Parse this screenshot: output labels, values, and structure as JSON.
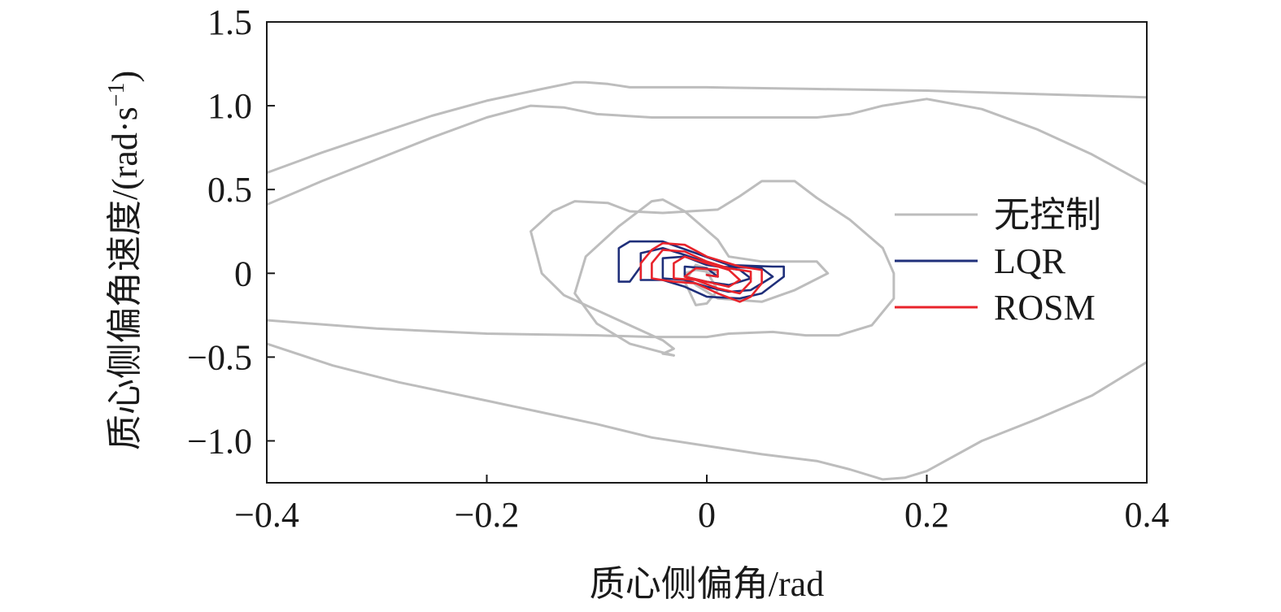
{
  "chart_data": {
    "type": "line",
    "xlabel": "质心侧偏角/rad",
    "ylabel": "质心侧偏角速度/(rad·s",
    "ylabel_sup": "−1",
    "ylabel_close": ")",
    "xlim": [
      -0.4,
      0.4
    ],
    "ylim": [
      -1.25,
      1.5
    ],
    "xticks": [
      {
        "v": -0.4,
        "label": "−0.4"
      },
      {
        "v": -0.2,
        "label": "−0.2"
      },
      {
        "v": 0,
        "label": "0"
      },
      {
        "v": 0.2,
        "label": "0.2"
      },
      {
        "v": 0.4,
        "label": "0.4"
      }
    ],
    "yticks": [
      {
        "v": 1.5,
        "label": "1.5"
      },
      {
        "v": 1.0,
        "label": "1.0"
      },
      {
        "v": 0.5,
        "label": "0.5"
      },
      {
        "v": 0,
        "label": "0"
      },
      {
        "v": -0.5,
        "label": "−0.5"
      },
      {
        "v": -1.0,
        "label": "−1.0"
      }
    ],
    "grid": false,
    "legend_position": "right",
    "series": [
      {
        "name": "无控制",
        "color": "#bdbdbd",
        "segments": [
          [
            [
              -0.4,
              0.6
            ],
            [
              -0.35,
              0.72
            ],
            [
              -0.3,
              0.83
            ],
            [
              -0.25,
              0.94
            ],
            [
              -0.2,
              1.03
            ],
            [
              -0.15,
              1.1
            ],
            [
              -0.12,
              1.14
            ],
            [
              -0.11,
              1.14
            ],
            [
              -0.09,
              1.13
            ],
            [
              -0.08,
              1.12
            ],
            [
              -0.07,
              1.11
            ],
            [
              0.0,
              1.11
            ],
            [
              0.1,
              1.1
            ],
            [
              0.2,
              1.09
            ],
            [
              0.3,
              1.07
            ],
            [
              0.4,
              1.05
            ]
          ],
          [
            [
              -0.4,
              0.41
            ],
            [
              -0.35,
              0.55
            ],
            [
              -0.3,
              0.68
            ],
            [
              -0.25,
              0.81
            ],
            [
              -0.2,
              0.93
            ],
            [
              -0.16,
              1.0
            ],
            [
              -0.13,
              0.99
            ],
            [
              -0.1,
              0.95
            ],
            [
              -0.05,
              0.93
            ],
            [
              0.0,
              0.93
            ],
            [
              0.05,
              0.93
            ],
            [
              0.1,
              0.93
            ],
            [
              0.13,
              0.95
            ],
            [
              0.16,
              1.0
            ],
            [
              0.2,
              1.04
            ],
            [
              0.25,
              0.98
            ],
            [
              0.3,
              0.86
            ],
            [
              0.35,
              0.71
            ],
            [
              0.4,
              0.53
            ]
          ],
          [
            [
              -0.4,
              -0.42
            ],
            [
              -0.34,
              -0.55
            ],
            [
              -0.28,
              -0.65
            ],
            [
              -0.2,
              -0.76
            ],
            [
              -0.15,
              -0.83
            ],
            [
              -0.1,
              -0.9
            ],
            [
              -0.05,
              -0.98
            ],
            [
              0.0,
              -1.03
            ],
            [
              0.05,
              -1.08
            ],
            [
              0.1,
              -1.12
            ],
            [
              0.13,
              -1.17
            ],
            [
              0.16,
              -1.23
            ],
            [
              0.18,
              -1.22
            ],
            [
              0.2,
              -1.18
            ],
            [
              0.25,
              -1.0
            ],
            [
              0.3,
              -0.87
            ],
            [
              0.35,
              -0.73
            ],
            [
              0.4,
              -0.53
            ]
          ],
          [
            [
              -0.4,
              -0.28
            ],
            [
              -0.3,
              -0.33
            ],
            [
              -0.2,
              -0.36
            ],
            [
              -0.1,
              -0.37
            ],
            [
              -0.05,
              -0.38
            ],
            [
              0.0,
              -0.38
            ],
            [
              0.02,
              -0.36
            ],
            [
              0.06,
              -0.35
            ],
            [
              0.09,
              -0.37
            ],
            [
              0.12,
              -0.37
            ],
            [
              0.15,
              -0.31
            ],
            [
              0.17,
              -0.15
            ],
            [
              0.17,
              0.0
            ],
            [
              0.16,
              0.15
            ],
            [
              0.13,
              0.32
            ],
            [
              0.1,
              0.45
            ],
            [
              0.08,
              0.55
            ],
            [
              0.05,
              0.55
            ],
            [
              0.03,
              0.46
            ],
            [
              0.01,
              0.38
            ],
            [
              -0.04,
              0.36
            ],
            [
              -0.07,
              0.37
            ],
            [
              -0.09,
              0.42
            ],
            [
              -0.12,
              0.43
            ],
            [
              -0.14,
              0.37
            ],
            [
              -0.16,
              0.25
            ],
            [
              -0.15,
              0.0
            ],
            [
              -0.13,
              -0.13
            ],
            [
              -0.08,
              -0.28
            ],
            [
              -0.04,
              -0.4
            ],
            [
              -0.03,
              -0.45
            ],
            [
              -0.04,
              -0.48
            ],
            [
              -0.03,
              -0.49
            ]
          ],
          [
            [
              -0.03,
              -0.49
            ],
            [
              -0.07,
              -0.42
            ],
            [
              -0.1,
              -0.3
            ],
            [
              -0.12,
              -0.12
            ],
            [
              -0.11,
              0.1
            ],
            [
              -0.08,
              0.28
            ],
            [
              -0.05,
              0.43
            ],
            [
              -0.04,
              0.44
            ],
            [
              -0.02,
              0.37
            ],
            [
              0.01,
              0.2
            ],
            [
              0.02,
              0.1
            ],
            [
              0.05,
              0.07
            ],
            [
              0.1,
              0.07
            ],
            [
              0.11,
              0.0
            ],
            [
              0.08,
              -0.1
            ],
            [
              0.05,
              -0.17
            ],
            [
              0.01,
              -0.15
            ],
            [
              -0.01,
              -0.07
            ],
            [
              -0.02,
              0.0
            ],
            [
              -0.01,
              0.02
            ],
            [
              0.0,
              0.01
            ]
          ],
          [
            [
              0.0,
              0.01
            ],
            [
              0.01,
              -0.1
            ],
            [
              0.0,
              -0.18
            ],
            [
              -0.01,
              -0.19
            ],
            [
              -0.02,
              -0.05
            ],
            [
              -0.01,
              0.05
            ],
            [
              0.01,
              0.01
            ],
            [
              0.0,
              0.0
            ]
          ]
        ]
      },
      {
        "name": "LQR",
        "color": "#1f2f7a",
        "segments": [
          [
            [
              -0.06,
              0.04
            ],
            [
              -0.07,
              -0.05
            ],
            [
              -0.08,
              -0.05
            ],
            [
              -0.08,
              0.15
            ],
            [
              -0.07,
              0.19
            ],
            [
              -0.04,
              0.19
            ],
            [
              -0.01,
              0.12
            ],
            [
              0.02,
              0.05
            ],
            [
              0.06,
              0.04
            ],
            [
              0.07,
              0.04
            ],
            [
              0.07,
              -0.02
            ],
            [
              0.05,
              -0.12
            ],
            [
              0.03,
              -0.15
            ],
            [
              0.0,
              -0.14
            ],
            [
              -0.02,
              -0.08
            ],
            [
              -0.04,
              -0.04
            ],
            [
              -0.06,
              -0.04
            ],
            [
              -0.06,
              0.12
            ],
            [
              -0.04,
              0.15
            ],
            [
              -0.02,
              0.11
            ],
            [
              0.01,
              0.04
            ],
            [
              0.05,
              0.03
            ],
            [
              0.06,
              -0.02
            ],
            [
              0.04,
              -0.1
            ],
            [
              0.02,
              -0.11
            ],
            [
              0.0,
              -0.08
            ],
            [
              -0.02,
              -0.04
            ],
            [
              -0.04,
              -0.03
            ],
            [
              -0.04,
              0.09
            ],
            [
              -0.02,
              0.1
            ],
            [
              0.0,
              0.05
            ],
            [
              0.03,
              0.02
            ],
            [
              0.04,
              -0.03
            ],
            [
              0.02,
              -0.07
            ],
            [
              0.0,
              -0.05
            ],
            [
              -0.02,
              -0.02
            ],
            [
              -0.02,
              0.04
            ],
            [
              0.0,
              0.03
            ],
            [
              0.01,
              -0.02
            ],
            [
              0.0,
              -0.01
            ]
          ]
        ]
      },
      {
        "name": "ROSM",
        "color": "#e8232b",
        "segments": [
          [
            [
              -0.06,
              -0.03
            ],
            [
              -0.06,
              0.06
            ],
            [
              -0.05,
              0.14
            ],
            [
              -0.04,
              0.18
            ],
            [
              -0.02,
              0.17
            ],
            [
              0.0,
              0.1
            ],
            [
              0.03,
              0.04
            ],
            [
              0.05,
              0.02
            ],
            [
              0.05,
              -0.06
            ],
            [
              0.04,
              -0.14
            ],
            [
              0.03,
              -0.17
            ],
            [
              0.01,
              -0.12
            ],
            [
              -0.01,
              -0.06
            ],
            [
              -0.03,
              -0.05
            ],
            [
              -0.05,
              -0.03
            ],
            [
              -0.05,
              0.06
            ],
            [
              -0.04,
              0.14
            ],
            [
              -0.02,
              0.13
            ],
            [
              0.0,
              0.07
            ],
            [
              0.02,
              0.03
            ],
            [
              0.04,
              0.01
            ],
            [
              0.04,
              -0.05
            ],
            [
              0.03,
              -0.12
            ],
            [
              0.01,
              -0.09
            ],
            [
              -0.01,
              -0.04
            ],
            [
              -0.03,
              -0.03
            ],
            [
              -0.03,
              0.06
            ],
            [
              -0.02,
              0.1
            ],
            [
              0.0,
              0.06
            ],
            [
              0.02,
              0.02
            ],
            [
              0.03,
              -0.04
            ],
            [
              0.02,
              -0.08
            ],
            [
              0.0,
              -0.05
            ],
            [
              -0.02,
              -0.02
            ],
            [
              -0.01,
              0.03
            ],
            [
              0.01,
              0.02
            ],
            [
              0.01,
              -0.02
            ],
            [
              0.0,
              -0.01
            ]
          ]
        ]
      }
    ]
  }
}
